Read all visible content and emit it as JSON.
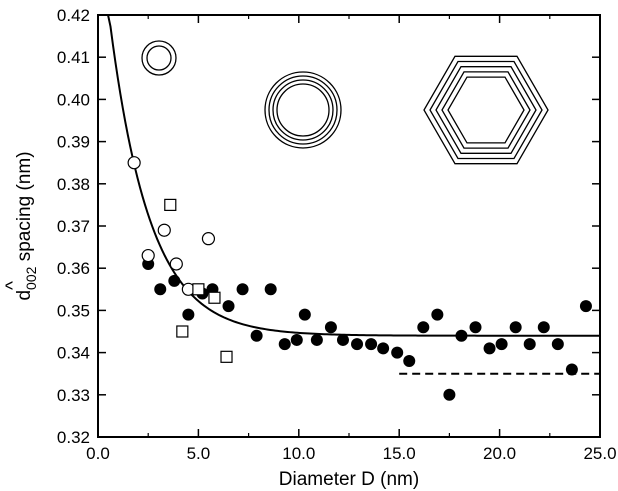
{
  "chart_data": {
    "type": "scatter",
    "xlabel": "Diameter D (nm)",
    "ylabel": {
      "hat": "^",
      "d": "d",
      "subscript": "002",
      "rest": " spacing (nm)"
    },
    "xlim": [
      0,
      25
    ],
    "ylim": [
      0.32,
      0.42
    ],
    "xticks": [
      0,
      5,
      10,
      15,
      20,
      25
    ],
    "xtick_labels": [
      "0.0",
      "5.0",
      "10.0",
      "15.0",
      "20.0",
      "25.0"
    ],
    "yticks": [
      0.32,
      0.33,
      0.34,
      0.35,
      0.36,
      0.37,
      0.38,
      0.39,
      0.4,
      0.41,
      0.42
    ],
    "ytick_labels": [
      "0.32",
      "0.33",
      "0.34",
      "0.35",
      "0.36",
      "0.37",
      "0.38",
      "0.39",
      "0.40",
      "0.41",
      "0.42"
    ],
    "grid": false,
    "series": [
      {
        "marker": "filled-circle",
        "points": [
          [
            2.5,
            0.361
          ],
          [
            3.1,
            0.355
          ],
          [
            3.8,
            0.357
          ],
          [
            4.5,
            0.349
          ],
          [
            5.2,
            0.354
          ],
          [
            5.7,
            0.355
          ],
          [
            6.5,
            0.351
          ],
          [
            7.2,
            0.355
          ],
          [
            7.9,
            0.344
          ],
          [
            8.6,
            0.355
          ],
          [
            9.3,
            0.342
          ],
          [
            9.9,
            0.343
          ],
          [
            10.3,
            0.349
          ],
          [
            10.9,
            0.343
          ],
          [
            11.6,
            0.346
          ],
          [
            12.2,
            0.343
          ],
          [
            12.9,
            0.342
          ],
          [
            13.6,
            0.342
          ],
          [
            14.2,
            0.341
          ],
          [
            14.9,
            0.34
          ],
          [
            15.5,
            0.338
          ],
          [
            16.2,
            0.346
          ],
          [
            16.9,
            0.349
          ],
          [
            17.5,
            0.33
          ],
          [
            18.1,
            0.344
          ],
          [
            18.8,
            0.346
          ],
          [
            19.5,
            0.341
          ],
          [
            20.1,
            0.342
          ],
          [
            20.8,
            0.346
          ],
          [
            21.5,
            0.342
          ],
          [
            22.2,
            0.346
          ],
          [
            22.9,
            0.342
          ],
          [
            23.6,
            0.336
          ],
          [
            24.3,
            0.351
          ]
        ]
      },
      {
        "marker": "open-circle",
        "points": [
          [
            1.8,
            0.385
          ],
          [
            2.5,
            0.363
          ],
          [
            3.3,
            0.369
          ],
          [
            3.9,
            0.361
          ],
          [
            4.5,
            0.355
          ],
          [
            5.5,
            0.367
          ]
        ]
      },
      {
        "marker": "open-square",
        "points": [
          [
            3.6,
            0.375
          ],
          [
            4.2,
            0.345
          ],
          [
            5.0,
            0.355
          ],
          [
            5.8,
            0.353
          ],
          [
            6.4,
            0.339
          ]
        ]
      }
    ],
    "fit_curve": {
      "style": "solid",
      "equation_form": "y = a + b*exp(-c*x)",
      "params": {
        "a": 0.344,
        "b": 0.1,
        "c": 0.5
      },
      "x_range": [
        0.5,
        25
      ]
    },
    "reference_line": {
      "style": "dashed",
      "y": 0.335,
      "x_range": [
        15,
        25
      ]
    },
    "insets": [
      {
        "name": "double-circle-icon",
        "shape": "concentric-circles",
        "rings": 2
      },
      {
        "name": "multiwall-circle-icon",
        "shape": "concentric-circles",
        "rings": 4
      },
      {
        "name": "polygonized-hexagon-icon",
        "shape": "concentric-hexagons",
        "rings": 5
      }
    ]
  }
}
